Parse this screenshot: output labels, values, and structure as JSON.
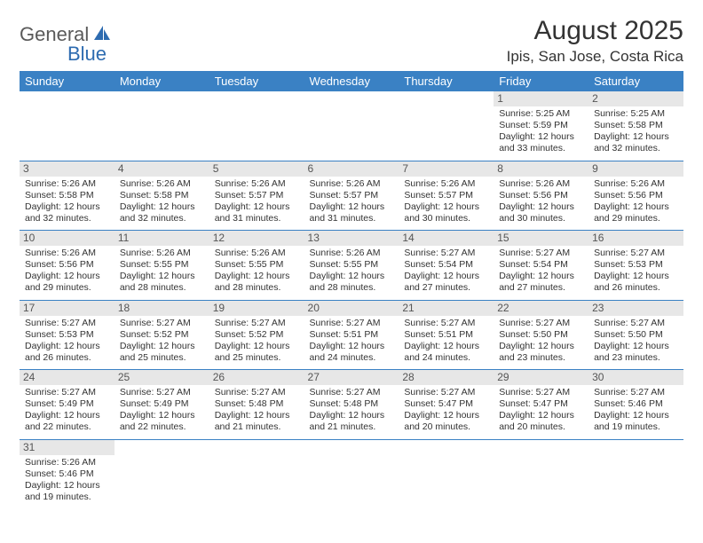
{
  "logo": {
    "text1": "General",
    "text2": "Blue"
  },
  "title": "August 2025",
  "location": "Ipis, San Jose, Costa Rica",
  "colors": {
    "header_bg": "#3a81c4",
    "header_text": "#ffffff",
    "daynum_bg": "#e7e7e7",
    "daynum_text": "#555555",
    "cell_text": "#333333",
    "rule": "#3a81c4",
    "logo_gray": "#5a5a5a",
    "logo_blue": "#2d6bb0"
  },
  "columns": [
    "Sunday",
    "Monday",
    "Tuesday",
    "Wednesday",
    "Thursday",
    "Friday",
    "Saturday"
  ],
  "weeks": [
    [
      null,
      null,
      null,
      null,
      null,
      {
        "n": "1",
        "sr": "5:25 AM",
        "ss": "5:59 PM",
        "dl": "12 hours and 33 minutes."
      },
      {
        "n": "2",
        "sr": "5:25 AM",
        "ss": "5:58 PM",
        "dl": "12 hours and 32 minutes."
      }
    ],
    [
      {
        "n": "3",
        "sr": "5:26 AM",
        "ss": "5:58 PM",
        "dl": "12 hours and 32 minutes."
      },
      {
        "n": "4",
        "sr": "5:26 AM",
        "ss": "5:58 PM",
        "dl": "12 hours and 32 minutes."
      },
      {
        "n": "5",
        "sr": "5:26 AM",
        "ss": "5:57 PM",
        "dl": "12 hours and 31 minutes."
      },
      {
        "n": "6",
        "sr": "5:26 AM",
        "ss": "5:57 PM",
        "dl": "12 hours and 31 minutes."
      },
      {
        "n": "7",
        "sr": "5:26 AM",
        "ss": "5:57 PM",
        "dl": "12 hours and 30 minutes."
      },
      {
        "n": "8",
        "sr": "5:26 AM",
        "ss": "5:56 PM",
        "dl": "12 hours and 30 minutes."
      },
      {
        "n": "9",
        "sr": "5:26 AM",
        "ss": "5:56 PM",
        "dl": "12 hours and 29 minutes."
      }
    ],
    [
      {
        "n": "10",
        "sr": "5:26 AM",
        "ss": "5:56 PM",
        "dl": "12 hours and 29 minutes."
      },
      {
        "n": "11",
        "sr": "5:26 AM",
        "ss": "5:55 PM",
        "dl": "12 hours and 28 minutes."
      },
      {
        "n": "12",
        "sr": "5:26 AM",
        "ss": "5:55 PM",
        "dl": "12 hours and 28 minutes."
      },
      {
        "n": "13",
        "sr": "5:26 AM",
        "ss": "5:55 PM",
        "dl": "12 hours and 28 minutes."
      },
      {
        "n": "14",
        "sr": "5:27 AM",
        "ss": "5:54 PM",
        "dl": "12 hours and 27 minutes."
      },
      {
        "n": "15",
        "sr": "5:27 AM",
        "ss": "5:54 PM",
        "dl": "12 hours and 27 minutes."
      },
      {
        "n": "16",
        "sr": "5:27 AM",
        "ss": "5:53 PM",
        "dl": "12 hours and 26 minutes."
      }
    ],
    [
      {
        "n": "17",
        "sr": "5:27 AM",
        "ss": "5:53 PM",
        "dl": "12 hours and 26 minutes."
      },
      {
        "n": "18",
        "sr": "5:27 AM",
        "ss": "5:52 PM",
        "dl": "12 hours and 25 minutes."
      },
      {
        "n": "19",
        "sr": "5:27 AM",
        "ss": "5:52 PM",
        "dl": "12 hours and 25 minutes."
      },
      {
        "n": "20",
        "sr": "5:27 AM",
        "ss": "5:51 PM",
        "dl": "12 hours and 24 minutes."
      },
      {
        "n": "21",
        "sr": "5:27 AM",
        "ss": "5:51 PM",
        "dl": "12 hours and 24 minutes."
      },
      {
        "n": "22",
        "sr": "5:27 AM",
        "ss": "5:50 PM",
        "dl": "12 hours and 23 minutes."
      },
      {
        "n": "23",
        "sr": "5:27 AM",
        "ss": "5:50 PM",
        "dl": "12 hours and 23 minutes."
      }
    ],
    [
      {
        "n": "24",
        "sr": "5:27 AM",
        "ss": "5:49 PM",
        "dl": "12 hours and 22 minutes."
      },
      {
        "n": "25",
        "sr": "5:27 AM",
        "ss": "5:49 PM",
        "dl": "12 hours and 22 minutes."
      },
      {
        "n": "26",
        "sr": "5:27 AM",
        "ss": "5:48 PM",
        "dl": "12 hours and 21 minutes."
      },
      {
        "n": "27",
        "sr": "5:27 AM",
        "ss": "5:48 PM",
        "dl": "12 hours and 21 minutes."
      },
      {
        "n": "28",
        "sr": "5:27 AM",
        "ss": "5:47 PM",
        "dl": "12 hours and 20 minutes."
      },
      {
        "n": "29",
        "sr": "5:27 AM",
        "ss": "5:47 PM",
        "dl": "12 hours and 20 minutes."
      },
      {
        "n": "30",
        "sr": "5:27 AM",
        "ss": "5:46 PM",
        "dl": "12 hours and 19 minutes."
      }
    ],
    [
      {
        "n": "31",
        "sr": "5:26 AM",
        "ss": "5:46 PM",
        "dl": "12 hours and 19 minutes."
      },
      null,
      null,
      null,
      null,
      null,
      null
    ]
  ],
  "labels": {
    "sunrise": "Sunrise:",
    "sunset": "Sunset:",
    "daylight": "Daylight:"
  }
}
